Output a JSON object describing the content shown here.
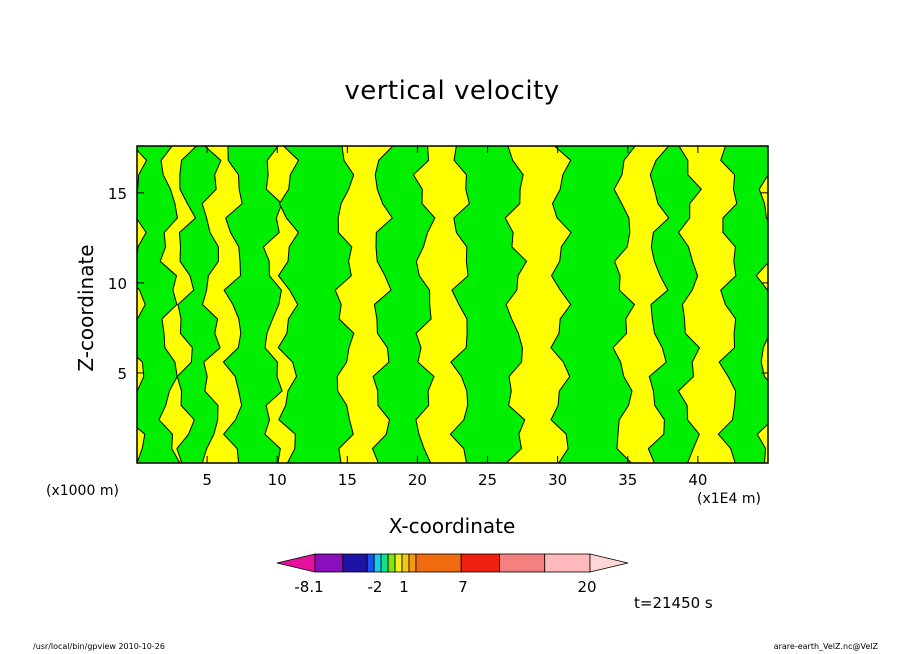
{
  "chart_data": {
    "type": "heatmap",
    "title": "vertical velocity",
    "xlabel": "X-coordinate",
    "ylabel": "Z-coordinate",
    "x_unit_note": "(x1E4  m)",
    "y_unit_note": "(x1000  m)",
    "xlim": [
      0,
      45
    ],
    "ylim": [
      0,
      17.6
    ],
    "x_ticks": [
      5,
      10,
      15,
      20,
      25,
      30,
      35,
      40
    ],
    "y_ticks": [
      5,
      10,
      15
    ],
    "field_colors": {
      "low": "#00ee00",
      "high": "#ffff00",
      "contour": "#000000"
    },
    "vertical_bands": [
      {
        "x0": 0.0,
        "x1": 2.3,
        "value": "low"
      },
      {
        "x0": 2.3,
        "x1": 3.4,
        "value": "high"
      },
      {
        "x0": 3.4,
        "x1": 5.3,
        "value": "low"
      },
      {
        "x0": 5.3,
        "x1": 7.0,
        "value": "high"
      },
      {
        "x0": 7.0,
        "x1": 9.7,
        "value": "low"
      },
      {
        "x0": 9.7,
        "x1": 10.8,
        "value": "high"
      },
      {
        "x0": 10.8,
        "x1": 14.8,
        "value": "low"
      },
      {
        "x0": 14.8,
        "x1": 17.4,
        "value": "high"
      },
      {
        "x0": 17.4,
        "x1": 20.5,
        "value": "low"
      },
      {
        "x0": 20.5,
        "x1": 23.2,
        "value": "high"
      },
      {
        "x0": 23.2,
        "x1": 27.0,
        "value": "low"
      },
      {
        "x0": 27.0,
        "x1": 30.2,
        "value": "high"
      },
      {
        "x0": 30.2,
        "x1": 34.7,
        "value": "low"
      },
      {
        "x0": 34.7,
        "x1": 37.1,
        "value": "high"
      },
      {
        "x0": 37.1,
        "x1": 39.4,
        "value": "low"
      },
      {
        "x0": 39.4,
        "x1": 42.3,
        "value": "high"
      },
      {
        "x0": 42.3,
        "x1": 45.0,
        "value": "low"
      }
    ],
    "colorbar": {
      "labels": [
        "-8.1",
        "-2",
        "1",
        "7",
        "20"
      ],
      "colors": [
        "#e5119e",
        "#8a0fba",
        "#1f13a6",
        "#1a4ff0",
        "#16c9f0",
        "#11e38c",
        "#7fe611",
        "#f0f01a",
        "#f5c80f",
        "#f39a10",
        "#f06a10",
        "#f02010",
        "#f58080",
        "#ffb9bc",
        "#ffd5d8"
      ]
    }
  },
  "time_label": "t=21450  s",
  "footer": {
    "left": "/usr/local/bin/gpview   2010-10-26",
    "right": "arare-earth_VelZ.nc@VelZ"
  }
}
